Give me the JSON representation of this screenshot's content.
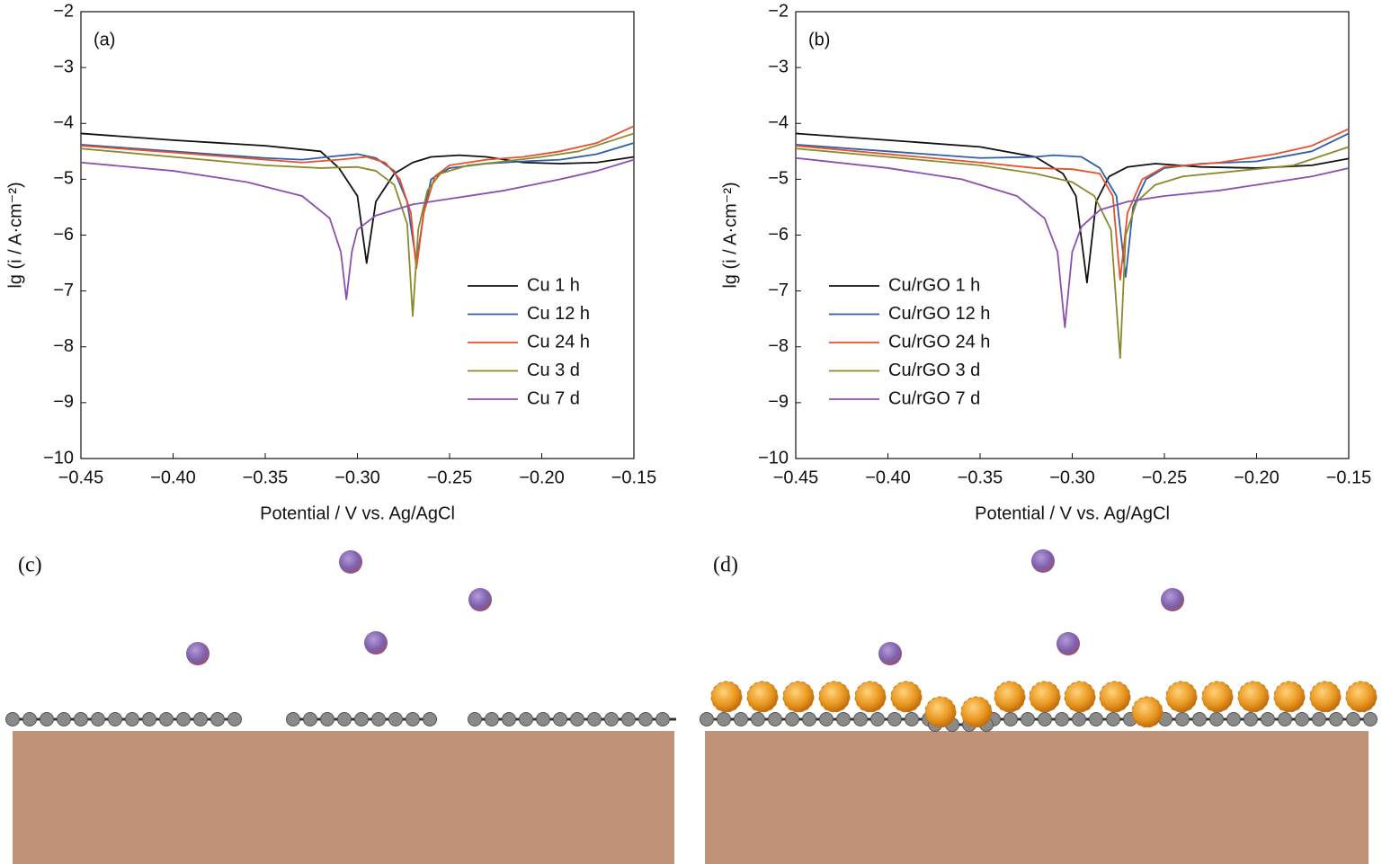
{
  "chart_data": [
    {
      "type": "line",
      "panel_label": "(a)",
      "x_label": "Potential / V vs. Ag/AgCl",
      "y_label": "lg (i / A·cm⁻²)",
      "xlim": [
        -0.45,
        -0.15
      ],
      "ylim": [
        -10,
        -2
      ],
      "legend": "lower right",
      "xticks": [
        {
          "value": -0.45,
          "label": "−0.45"
        },
        {
          "value": -0.4,
          "label": "−0.40"
        },
        {
          "value": -0.35,
          "label": "−0.35"
        },
        {
          "value": -0.3,
          "label": "−0.30"
        },
        {
          "value": -0.25,
          "label": "−0.25"
        },
        {
          "value": -0.2,
          "label": "−0.20"
        },
        {
          "value": -0.15,
          "label": "−0.15"
        }
      ],
      "yticks": [
        {
          "value": -2,
          "label": "−2"
        },
        {
          "value": -3,
          "label": "−3"
        },
        {
          "value": -4,
          "label": "−4"
        },
        {
          "value": -5,
          "label": "−5"
        },
        {
          "value": -6,
          "label": "−6"
        },
        {
          "value": -7,
          "label": "−7"
        },
        {
          "value": -8,
          "label": "−8"
        },
        {
          "value": -9,
          "label": "−9"
        },
        {
          "value": -10,
          "label": "−10"
        }
      ],
      "series": [
        {
          "name": "Cu 1 h",
          "color": "#111111",
          "x": [
            -0.45,
            -0.4,
            -0.35,
            -0.32,
            -0.31,
            -0.3,
            -0.295,
            -0.29,
            -0.28,
            -0.27,
            -0.26,
            -0.245,
            -0.23,
            -0.21,
            -0.19,
            -0.17,
            -0.15
          ],
          "values": [
            -4.18,
            -4.3,
            -4.4,
            -4.5,
            -4.8,
            -5.3,
            -6.5,
            -5.4,
            -4.9,
            -4.7,
            -4.6,
            -4.57,
            -4.6,
            -4.7,
            -4.72,
            -4.7,
            -4.6
          ]
        },
        {
          "name": "Cu 12 h",
          "color": "#2e5fa8",
          "x": [
            -0.45,
            -0.4,
            -0.35,
            -0.33,
            -0.31,
            -0.3,
            -0.29,
            -0.28,
            -0.273,
            -0.268,
            -0.264,
            -0.26,
            -0.25,
            -0.23,
            -0.21,
            -0.19,
            -0.17,
            -0.15
          ],
          "values": [
            -4.38,
            -4.5,
            -4.62,
            -4.65,
            -4.58,
            -4.55,
            -4.62,
            -4.85,
            -5.4,
            -6.5,
            -5.6,
            -5.0,
            -4.8,
            -4.72,
            -4.68,
            -4.65,
            -4.55,
            -4.35
          ]
        },
        {
          "name": "Cu 24 h",
          "color": "#e8502a",
          "x": [
            -0.45,
            -0.4,
            -0.35,
            -0.33,
            -0.31,
            -0.295,
            -0.285,
            -0.277,
            -0.271,
            -0.268,
            -0.264,
            -0.258,
            -0.25,
            -0.23,
            -0.21,
            -0.19,
            -0.17,
            -0.15
          ],
          "values": [
            -4.4,
            -4.52,
            -4.65,
            -4.7,
            -4.65,
            -4.6,
            -4.7,
            -5.0,
            -5.6,
            -6.6,
            -5.6,
            -4.95,
            -4.75,
            -4.65,
            -4.6,
            -4.5,
            -4.35,
            -4.05
          ]
        },
        {
          "name": "Cu 3 d",
          "color": "#8b8a2a",
          "x": [
            -0.45,
            -0.4,
            -0.35,
            -0.32,
            -0.3,
            -0.29,
            -0.28,
            -0.273,
            -0.27,
            -0.267,
            -0.262,
            -0.255,
            -0.24,
            -0.22,
            -0.2,
            -0.18,
            -0.15
          ],
          "values": [
            -4.45,
            -4.6,
            -4.75,
            -4.8,
            -4.78,
            -4.85,
            -5.1,
            -5.8,
            -7.45,
            -5.9,
            -5.2,
            -4.9,
            -4.75,
            -4.68,
            -4.6,
            -4.5,
            -4.18
          ]
        },
        {
          "name": "Cu 7 d",
          "color": "#8a4fb0",
          "x": [
            -0.45,
            -0.4,
            -0.36,
            -0.33,
            -0.315,
            -0.309,
            -0.306,
            -0.303,
            -0.3,
            -0.29,
            -0.27,
            -0.25,
            -0.22,
            -0.19,
            -0.17,
            -0.15
          ],
          "values": [
            -4.7,
            -4.85,
            -5.05,
            -5.3,
            -5.7,
            -6.3,
            -7.15,
            -6.3,
            -5.9,
            -5.65,
            -5.45,
            -5.35,
            -5.2,
            -5.0,
            -4.85,
            -4.65
          ]
        }
      ]
    },
    {
      "type": "line",
      "panel_label": "(b)",
      "x_label": "Potential / V vs. Ag/AgCl",
      "y_label": "lg (i / A·cm⁻²)",
      "xlim": [
        -0.45,
        -0.15
      ],
      "ylim": [
        -10,
        -2
      ],
      "legend": "lower left",
      "xticks": [
        {
          "value": -0.45,
          "label": "−0.45"
        },
        {
          "value": -0.4,
          "label": "−0.40"
        },
        {
          "value": -0.35,
          "label": "−0.35"
        },
        {
          "value": -0.3,
          "label": "−0.30"
        },
        {
          "value": -0.25,
          "label": "−0.25"
        },
        {
          "value": -0.2,
          "label": "−0.20"
        },
        {
          "value": -0.15,
          "label": "−0.15"
        }
      ],
      "yticks": [
        {
          "value": -2,
          "label": "−2"
        },
        {
          "value": -3,
          "label": "−3"
        },
        {
          "value": -4,
          "label": "−4"
        },
        {
          "value": -5,
          "label": "−5"
        },
        {
          "value": -6,
          "label": "−6"
        },
        {
          "value": -7,
          "label": "−7"
        },
        {
          "value": -8,
          "label": "−8"
        },
        {
          "value": -9,
          "label": "−9"
        },
        {
          "value": -10,
          "label": "−10"
        }
      ],
      "series": [
        {
          "name": "Cu/rGO 1 h",
          "color": "#111111",
          "x": [
            -0.45,
            -0.4,
            -0.35,
            -0.32,
            -0.305,
            -0.298,
            -0.292,
            -0.287,
            -0.28,
            -0.27,
            -0.255,
            -0.23,
            -0.2,
            -0.17,
            -0.15
          ],
          "values": [
            -4.18,
            -4.3,
            -4.42,
            -4.6,
            -4.9,
            -5.3,
            -6.85,
            -5.4,
            -4.95,
            -4.78,
            -4.72,
            -4.78,
            -4.8,
            -4.75,
            -4.63
          ]
        },
        {
          "name": "Cu/rGO 12 h",
          "color": "#2e5fa8",
          "x": [
            -0.45,
            -0.4,
            -0.35,
            -0.32,
            -0.31,
            -0.295,
            -0.285,
            -0.276,
            -0.271,
            -0.267,
            -0.26,
            -0.25,
            -0.23,
            -0.2,
            -0.17,
            -0.15
          ],
          "values": [
            -4.38,
            -4.5,
            -4.62,
            -4.6,
            -4.57,
            -4.6,
            -4.8,
            -5.3,
            -6.75,
            -5.5,
            -5.0,
            -4.8,
            -4.72,
            -4.68,
            -4.5,
            -4.18
          ]
        },
        {
          "name": "Cu/rGO 24 h",
          "color": "#e8502a",
          "x": [
            -0.45,
            -0.4,
            -0.35,
            -0.32,
            -0.3,
            -0.285,
            -0.278,
            -0.274,
            -0.27,
            -0.262,
            -0.25,
            -0.22,
            -0.19,
            -0.17,
            -0.15
          ],
          "values": [
            -4.4,
            -4.55,
            -4.7,
            -4.8,
            -4.82,
            -4.9,
            -5.3,
            -6.8,
            -5.6,
            -5.0,
            -4.78,
            -4.7,
            -4.55,
            -4.4,
            -4.1
          ]
        },
        {
          "name": "Cu/rGO 3 d",
          "color": "#8b8a2a",
          "x": [
            -0.45,
            -0.4,
            -0.35,
            -0.32,
            -0.3,
            -0.288,
            -0.279,
            -0.274,
            -0.271,
            -0.265,
            -0.255,
            -0.24,
            -0.21,
            -0.18,
            -0.15
          ],
          "values": [
            -4.45,
            -4.6,
            -4.75,
            -4.9,
            -5.05,
            -5.3,
            -5.9,
            -8.2,
            -6.0,
            -5.4,
            -5.1,
            -4.95,
            -4.85,
            -4.75,
            -4.42
          ]
        },
        {
          "name": "Cu/rGO 7 d",
          "color": "#8a4fb0",
          "x": [
            -0.45,
            -0.4,
            -0.36,
            -0.33,
            -0.315,
            -0.308,
            -0.304,
            -0.3,
            -0.295,
            -0.285,
            -0.27,
            -0.25,
            -0.22,
            -0.19,
            -0.17,
            -0.15
          ],
          "values": [
            -4.62,
            -4.8,
            -5.0,
            -5.3,
            -5.7,
            -6.3,
            -7.65,
            -6.3,
            -5.85,
            -5.55,
            -5.4,
            -5.3,
            -5.2,
            -5.05,
            -4.95,
            -4.8
          ]
        }
      ]
    }
  ],
  "illustrations": [
    {
      "label": "(c)"
    },
    {
      "label": "(d)"
    }
  ]
}
